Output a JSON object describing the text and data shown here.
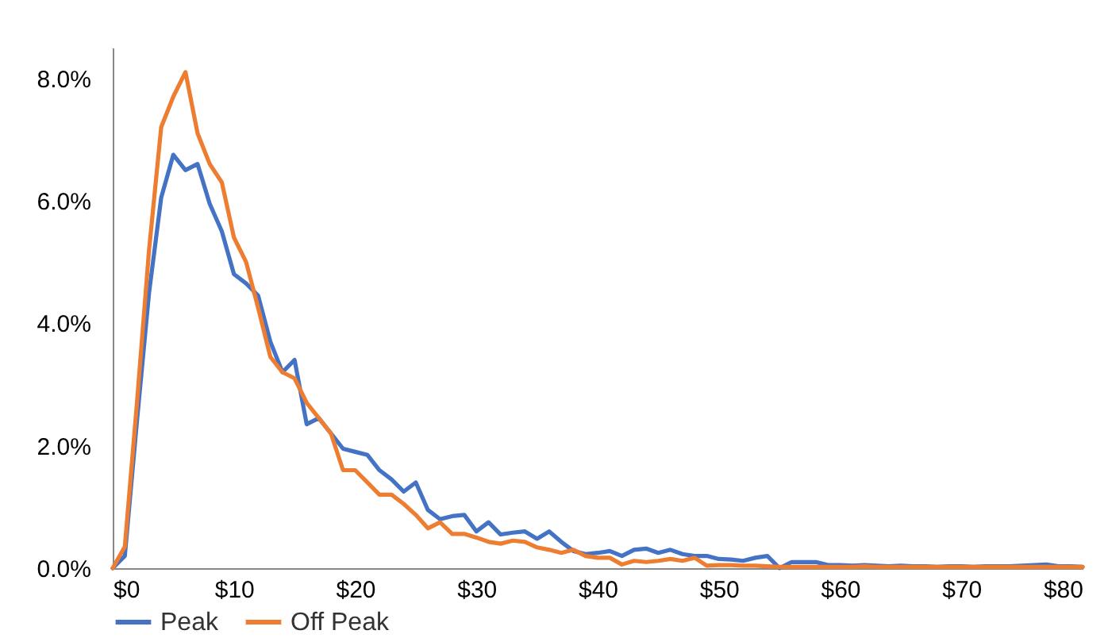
{
  "chart_data": {
    "type": "line",
    "x": [
      0,
      1,
      2,
      3,
      4,
      5,
      6,
      7,
      8,
      9,
      10,
      11,
      12,
      13,
      14,
      15,
      16,
      17,
      18,
      19,
      20,
      21,
      22,
      23,
      24,
      25,
      26,
      27,
      28,
      29,
      30,
      31,
      32,
      33,
      34,
      35,
      36,
      37,
      38,
      39,
      40,
      41,
      42,
      43,
      44,
      45,
      46,
      47,
      48,
      49,
      50,
      51,
      52,
      53,
      54,
      55,
      56,
      57,
      58,
      59,
      60,
      61,
      62,
      63,
      64,
      65,
      66,
      67,
      68,
      69,
      70,
      71,
      72,
      73,
      74,
      75,
      76,
      77,
      78,
      79,
      80
    ],
    "series": [
      {
        "name": "Peak",
        "color": "#4472c4",
        "values": [
          0,
          0.2,
          2.4,
          4.5,
          6.05,
          6.75,
          6.5,
          6.6,
          5.95,
          5.5,
          4.8,
          4.65,
          4.45,
          3.7,
          3.2,
          3.4,
          2.35,
          2.45,
          2.2,
          1.95,
          1.9,
          1.85,
          1.6,
          1.45,
          1.25,
          1.4,
          0.95,
          0.8,
          0.85,
          0.87,
          0.6,
          0.75,
          0.55,
          0.58,
          0.6,
          0.48,
          0.6,
          0.43,
          0.28,
          0.23,
          0.25,
          0.28,
          0.2,
          0.3,
          0.32,
          0.25,
          0.3,
          0.23,
          0.2,
          0.2,
          0.15,
          0.14,
          0.12,
          0.17,
          0.2,
          0,
          0.1,
          0.1,
          0.1,
          0.05,
          0.05,
          0.04,
          0.05,
          0.04,
          0.03,
          0.04,
          0.03,
          0.03,
          0.02,
          0.03,
          0.03,
          0.02,
          0.03,
          0.03,
          0.03,
          0.04,
          0.05,
          0.06,
          0.03,
          0.03,
          0.02
        ]
      },
      {
        "name": "Off Peak",
        "color": "#ed7d31",
        "values": [
          0,
          0.35,
          2.7,
          5.2,
          7.2,
          7.7,
          8.1,
          7.1,
          6.6,
          6.3,
          5.4,
          5.0,
          4.25,
          3.45,
          3.2,
          3.1,
          2.7,
          2.45,
          2.2,
          1.6,
          1.6,
          1.4,
          1.2,
          1.2,
          1.05,
          0.87,
          0.65,
          0.75,
          0.56,
          0.56,
          0.5,
          0.43,
          0.4,
          0.45,
          0.43,
          0.34,
          0.3,
          0.25,
          0.3,
          0.2,
          0.17,
          0.17,
          0.06,
          0.12,
          0.1,
          0.12,
          0.15,
          0.12,
          0.17,
          0.04,
          0.05,
          0.05,
          0.04,
          0.04,
          0.03,
          0.02,
          0.02,
          0.02,
          0.02,
          0.02,
          0.02,
          0.02,
          0.03,
          0.02,
          0.02,
          0.02,
          0.02,
          0.02,
          0.02,
          0.02,
          0.02,
          0.02,
          0.02,
          0.02,
          0.02,
          0.02,
          0.02,
          0.02,
          0.02,
          0.02,
          0.02
        ]
      }
    ],
    "xlim": [
      0,
      80
    ],
    "xticks": [
      {
        "value": 0,
        "label": "$0"
      },
      {
        "value": 10,
        "label": "$10"
      },
      {
        "value": 20,
        "label": "$20"
      },
      {
        "value": 30,
        "label": "$30"
      },
      {
        "value": 40,
        "label": "$40"
      },
      {
        "value": 50,
        "label": "$50"
      },
      {
        "value": 60,
        "label": "$60"
      },
      {
        "value": 70,
        "label": "$70"
      },
      {
        "value": 80,
        "label": "$80"
      }
    ],
    "ylim": [
      0,
      8.5
    ],
    "yticks": [
      {
        "value": 0,
        "label": "0.0%"
      },
      {
        "value": 2,
        "label": "2.0%"
      },
      {
        "value": 4,
        "label": "4.0%"
      },
      {
        "value": 6,
        "label": "6.0%"
      },
      {
        "value": 8,
        "label": "8.0%"
      }
    ],
    "grid": false,
    "legend": "bottom",
    "line_style": "solid"
  }
}
